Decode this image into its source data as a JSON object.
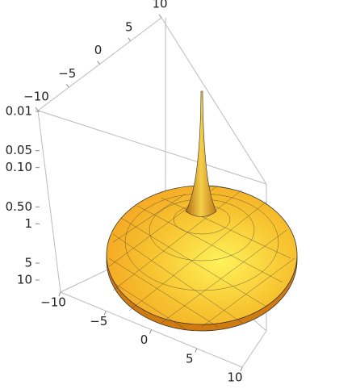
{
  "chart_data": {
    "type": "surface3d",
    "xlim": [
      -10,
      10
    ],
    "ylim": [
      -10,
      10
    ],
    "zlim": [
      0.01,
      10
    ],
    "z_log_scale": true,
    "z_reversed": true,
    "xticks": [
      {
        "value": -10,
        "label": "−10"
      },
      {
        "value": -5,
        "label": "−5"
      },
      0,
      5,
      10
    ],
    "yticks": [
      {
        "value": -10,
        "label": "−10"
      },
      {
        "value": -5,
        "label": "−5"
      },
      0,
      5,
      10
    ],
    "zticks": [
      0.01,
      0.05,
      {
        "value": 0.1,
        "label": "0.10"
      },
      {
        "value": 0.5,
        "label": "0.50"
      },
      1,
      5,
      10
    ],
    "color": "#f5a623"
  }
}
